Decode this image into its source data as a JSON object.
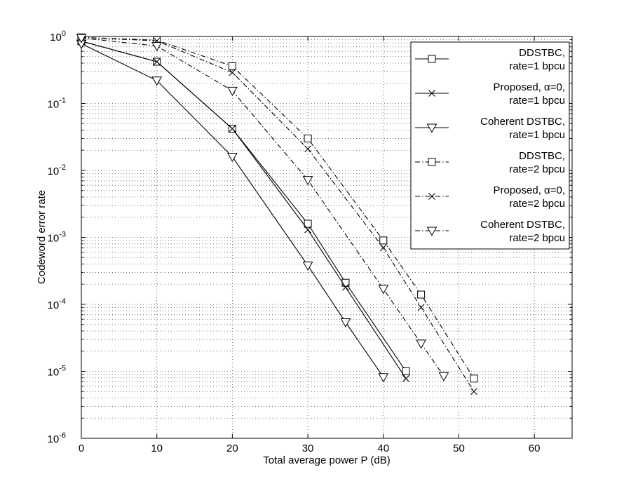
{
  "chart_data": {
    "type": "line",
    "title": "",
    "xlabel": "Total average power P (dB)",
    "ylabel": "Codeword error rate",
    "xlim": [
      0,
      65
    ],
    "ylim": [
      1e-06,
      1
    ],
    "y_scale": "log",
    "grid": true,
    "legend_position": "top-right",
    "x_ticks": [
      {
        "value": 0,
        "label": "0"
      },
      {
        "value": 10,
        "label": "10"
      },
      {
        "value": 20,
        "label": "20"
      },
      {
        "value": 30,
        "label": "30"
      },
      {
        "value": 40,
        "label": "40"
      },
      {
        "value": 50,
        "label": "50"
      },
      {
        "value": 60,
        "label": "60"
      }
    ],
    "y_ticks": [
      {
        "value": 1,
        "base": "10",
        "exp": "0"
      },
      {
        "value": 0.1,
        "base": "10",
        "exp": "-1"
      },
      {
        "value": 0.01,
        "base": "10",
        "exp": "-2"
      },
      {
        "value": 0.001,
        "base": "10",
        "exp": "-3"
      },
      {
        "value": 0.0001,
        "base": "10",
        "exp": "-4"
      },
      {
        "value": 1e-05,
        "base": "10",
        "exp": "-5"
      },
      {
        "value": 1e-06,
        "base": "10",
        "exp": "-6"
      }
    ],
    "series": [
      {
        "name": "DDSTBC, rate=1 bpcu",
        "legend_lines": [
          "DDSTBC,",
          "rate=1 bpcu"
        ],
        "marker": "square",
        "dash": "solid",
        "x": [
          0,
          10,
          20,
          30,
          35,
          43
        ],
        "y": [
          0.85,
          0.42,
          0.042,
          0.0016,
          0.00021,
          1e-05
        ]
      },
      {
        "name": "Proposed, α=0, rate=1 bpcu",
        "legend_lines": [
          "Proposed, α=0,",
          "rate=1 bpcu"
        ],
        "marker": "x",
        "dash": "solid",
        "x": [
          0,
          10,
          20,
          30,
          35,
          43
        ],
        "y": [
          0.85,
          0.42,
          0.042,
          0.0013,
          0.00018,
          7.8e-06
        ]
      },
      {
        "name": "Coherent DSTBC, rate=1 bpcu",
        "legend_lines": [
          "Coherent DSTBC,",
          "rate=1 bpcu"
        ],
        "marker": "triangle-down",
        "dash": "solid",
        "x": [
          0,
          10,
          20,
          30,
          35,
          40
        ],
        "y": [
          0.78,
          0.22,
          0.016,
          0.00038,
          5.4e-05,
          8.2e-06
        ]
      },
      {
        "name": "DDSTBC, rate=2 bpcu",
        "legend_lines": [
          "DDSTBC,",
          "rate=2 bpcu"
        ],
        "marker": "square",
        "dash": "dashdot",
        "x": [
          0,
          10,
          20,
          30,
          40,
          45,
          52
        ],
        "y": [
          0.97,
          0.88,
          0.36,
          0.03,
          0.0009,
          0.00014,
          7.8e-06
        ]
      },
      {
        "name": "Proposed, α=0, rate=2 bpcu",
        "legend_lines": [
          "Proposed, α=0,",
          "rate=2 bpcu"
        ],
        "marker": "x",
        "dash": "dashdot",
        "x": [
          0,
          10,
          20,
          30,
          40,
          45,
          52
        ],
        "y": [
          0.97,
          0.86,
          0.29,
          0.021,
          0.0007,
          9e-05,
          5e-06
        ]
      },
      {
        "name": "Coherent DSTBC, rate=2 bpcu",
        "legend_lines": [
          "Coherent DSTBC,",
          "rate=2 bpcu"
        ],
        "marker": "triangle-down",
        "dash": "dashdot",
        "x": [
          0,
          10,
          20,
          30,
          40,
          45,
          48
        ],
        "y": [
          0.95,
          0.72,
          0.155,
          0.0072,
          0.00017,
          2.6e-05,
          8.5e-06
        ]
      }
    ]
  }
}
